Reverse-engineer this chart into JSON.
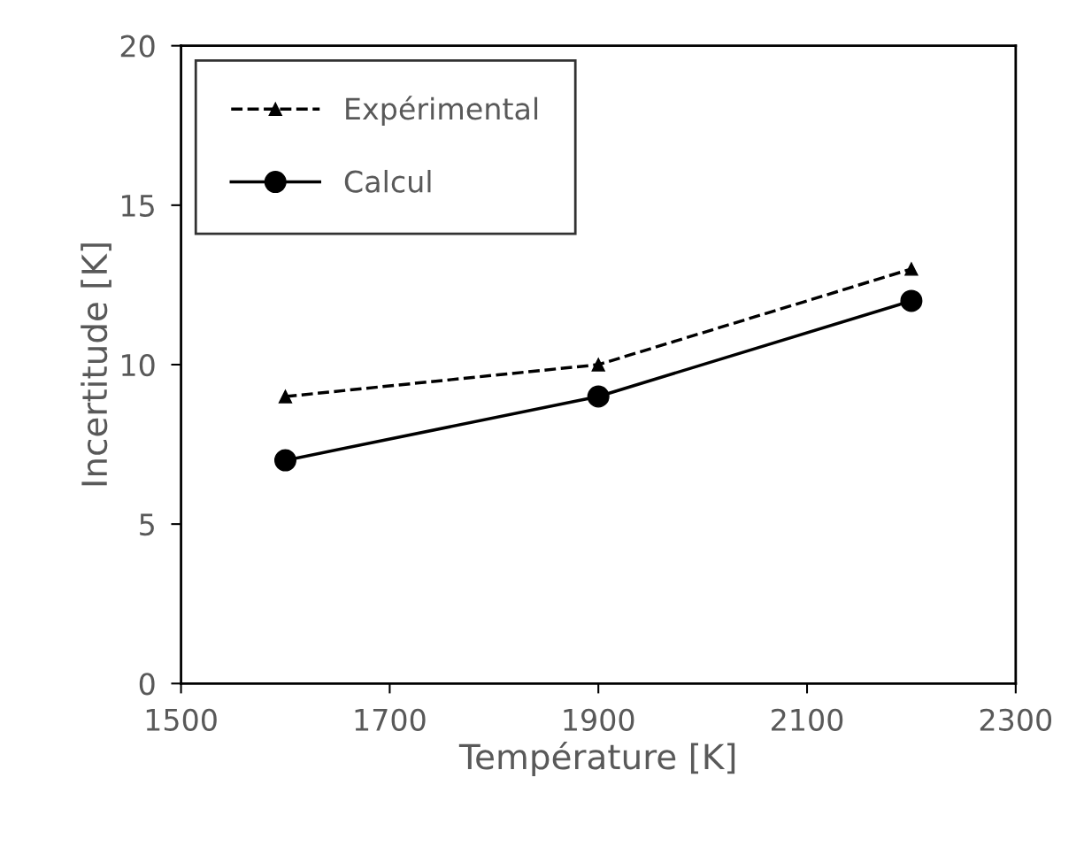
{
  "chart_data": {
    "type": "line",
    "xlabel": "Température [K]",
    "ylabel": "Incertitude [K]",
    "x": [
      1600,
      1900,
      2200
    ],
    "series": [
      {
        "name": "Expérimental",
        "color": "#000000",
        "values": [
          9,
          10,
          13
        ],
        "marker": "triangle",
        "line_style": "dashed"
      },
      {
        "name": "Calcul",
        "color": "#000000",
        "values": [
          7,
          9,
          12
        ],
        "marker": "circle",
        "line_style": "solid"
      }
    ],
    "xlim": [
      1500,
      2300
    ],
    "xticks": [
      1500,
      1700,
      1900,
      2100,
      2300
    ],
    "ylim": [
      0,
      20
    ],
    "yticks": [
      0,
      5,
      10,
      15,
      20
    ],
    "grid": false,
    "legend": "top left"
  }
}
